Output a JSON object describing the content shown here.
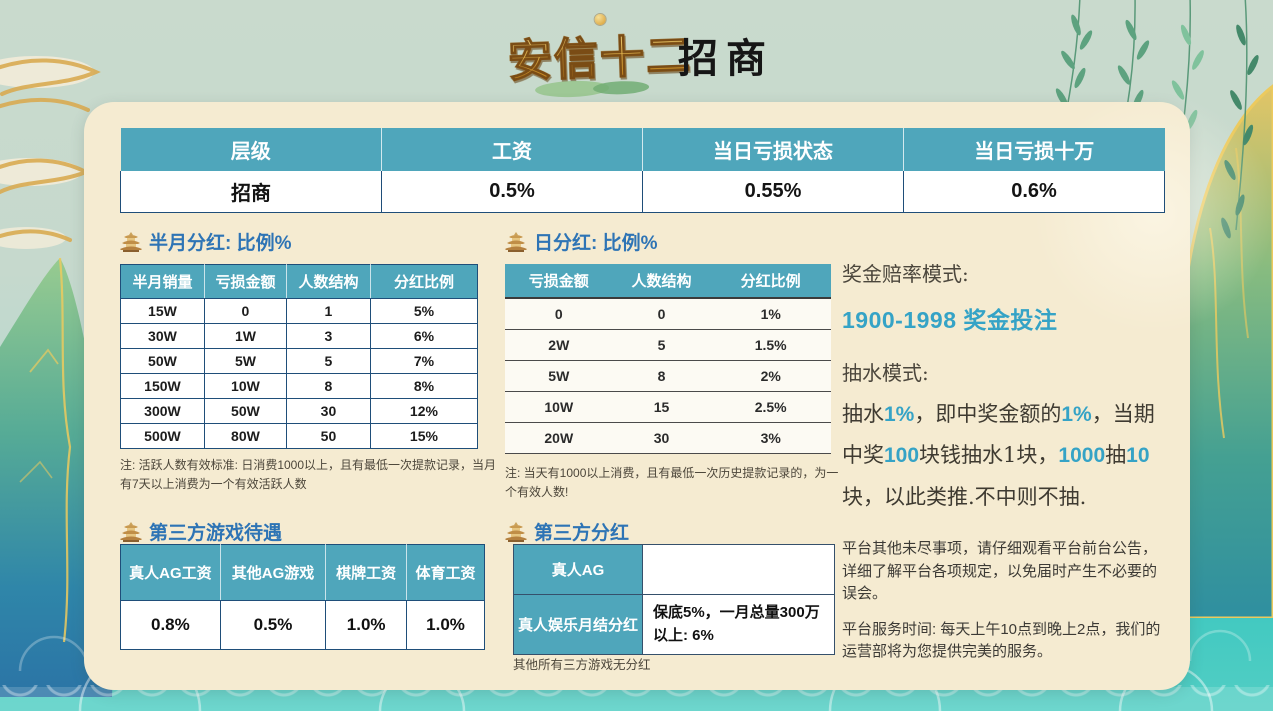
{
  "header": {
    "logo_text": "安信十二",
    "page_title": "招商"
  },
  "tier_table": {
    "headers": [
      "层级",
      "工资",
      "当日亏损状态",
      "当日亏损十万"
    ],
    "rows": [
      [
        "招商",
        "0.5%",
        "0.55%",
        "0.6%"
      ]
    ]
  },
  "half_month_section": {
    "title": "半月分红: 比例%",
    "table": {
      "headers": [
        "半月销量",
        "亏损金额",
        "人数结构",
        "分红比例"
      ],
      "rows": [
        [
          "15W",
          "0",
          "1",
          "5%"
        ],
        [
          "30W",
          "1W",
          "3",
          "6%"
        ],
        [
          "50W",
          "5W",
          "5",
          "7%"
        ],
        [
          "150W",
          "10W",
          "8",
          "8%"
        ],
        [
          "300W",
          "50W",
          "30",
          "12%"
        ],
        [
          "500W",
          "80W",
          "50",
          "15%"
        ]
      ]
    },
    "note": "注: 活跃人数有效标准: 日消费1000以上，且有最低一次提款记录，当月有7天以上消费为一个有效活跃人数"
  },
  "daily_section": {
    "title": "日分红: 比例%",
    "table": {
      "headers": [
        "亏损金额",
        "人数结构",
        "分红比例"
      ],
      "rows": [
        [
          "0",
          "0",
          "1%"
        ],
        [
          "2W",
          "5",
          "1.5%"
        ],
        [
          "5W",
          "8",
          "2%"
        ],
        [
          "10W",
          "15",
          "2.5%"
        ],
        [
          "20W",
          "30",
          "3%"
        ]
      ]
    },
    "note": "注: 当天有1000以上消费，且有最低一次历史提款记录的，为一个有效人数!"
  },
  "bonus_info": {
    "odds_label": "奖金赔率模式:",
    "odds_value": "1900-1998 奖金投注",
    "rake_label": "抽水模式:",
    "rake_segments": [
      {
        "t": "抽水",
        "hl": false
      },
      {
        "t": "1%",
        "hl": true
      },
      {
        "t": "，即中奖金额的",
        "hl": false
      },
      {
        "t": "1%",
        "hl": true
      },
      {
        "t": "，当期中奖",
        "hl": false
      },
      {
        "t": "100",
        "hl": true
      },
      {
        "t": "块钱抽水1块，",
        "hl": false
      },
      {
        "t": "1000",
        "hl": true
      },
      {
        "t": "抽",
        "hl": false
      },
      {
        "t": "10",
        "hl": true
      },
      {
        "t": "块，以此类推.不中则不抽.",
        "hl": false
      }
    ]
  },
  "third_party_section": {
    "title": "第三方游戏待遇",
    "table": {
      "headers": [
        "真人AG工资",
        "其他AG游戏",
        "棋牌工资",
        "体育工资"
      ],
      "rows": [
        [
          "0.8%",
          "0.5%",
          "1.0%",
          "1.0%"
        ]
      ]
    }
  },
  "third_party_bonus_section": {
    "title": "第三方分红",
    "table": {
      "rows": [
        [
          "真人AG",
          ""
        ],
        [
          "真人娱乐月结分红",
          "保底5%，一月总量300万以上:  6%"
        ]
      ]
    },
    "note": "其他所有三方游戏无分红"
  },
  "platform_notes": {
    "p1": "平台其他未尽事项，请仔细观看平台前台公告，详细了解平台各项规定，以免届时产生不必要的误会。",
    "p2": "平台服务时间: 每天上午10点到晚上2点，我们的运营部将为您提供完美的服务。"
  },
  "colors": {
    "table_header_teal": "#4fa6bb",
    "section_title_blue": "#2e74b5",
    "highlight_teal": "#35a3c6",
    "table_border_navy": "#1f4e79",
    "panel_cream": "#f5ebd1",
    "water_turquoise": "#3fc8c0"
  }
}
